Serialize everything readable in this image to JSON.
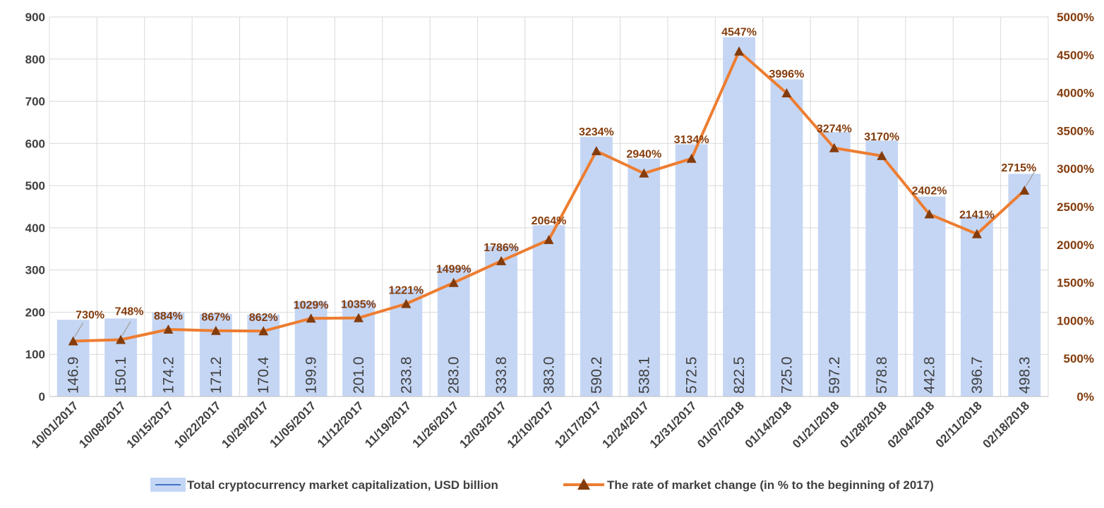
{
  "chart_data": {
    "type": "bar",
    "title": "",
    "xlabel": "",
    "ylabel": "",
    "categories": [
      "10/01/2017",
      "10/08/2017",
      "10/15/2017",
      "10/22/2017",
      "10/29/2017",
      "11/05/2017",
      "11/12/2017",
      "11/19/2017",
      "11/26/2017",
      "12/03/2017",
      "12/10/2017",
      "12/17/2017",
      "12/24/2017",
      "12/31/2017",
      "01/07/2018",
      "01/14/2018",
      "01/21/2018",
      "01/28/2018",
      "02/04/2018",
      "02/11/2018",
      "02/18/2018"
    ],
    "series": [
      {
        "name": "Total cryptocurrency market capitalization, USD billion",
        "type": "bar",
        "axis": "left",
        "color": "#c5d6f4",
        "values": [
          146.9,
          150.1,
          174.2,
          171.2,
          170.4,
          199.9,
          201.0,
          233.8,
          283.0,
          333.8,
          383.0,
          590.2,
          538.1,
          572.5,
          822.5,
          725.0,
          597.2,
          578.8,
          442.8,
          396.7,
          498.3
        ],
        "labels": [
          "146.9",
          "150.1",
          "174.2",
          "171.2",
          "170.4",
          "199.9",
          "201.0",
          "233.8",
          "283.0",
          "333.8",
          "383.0",
          "590.2",
          "538.1",
          "572.5",
          "822.5",
          "725.0",
          "597.2",
          "578.8",
          "442.8",
          "396.7",
          "498.3"
        ],
        "bar_tops": [
          182,
          185,
          199,
          196,
          194,
          226,
          226,
          256,
          306,
          357,
          406,
          616,
          564,
          598,
          852,
          752,
          627,
          607,
          474,
          427,
          528
        ]
      },
      {
        "name": "The rate of market change (in % to the beginning of 2017)",
        "type": "line",
        "axis": "right",
        "color": "#ed7d31",
        "marker": "triangle",
        "marker_color": "#843c0c",
        "values": [
          730,
          748,
          884,
          867,
          862,
          1029,
          1035,
          1221,
          1499,
          1786,
          2064,
          3234,
          2940,
          3134,
          4547,
          3996,
          3274,
          3170,
          2402,
          2141,
          2715
        ],
        "labels": [
          "730%",
          "748%",
          "884%",
          "867%",
          "862%",
          "1029%",
          "1035%",
          "1221%",
          "1499%",
          "1786%",
          "2064%",
          "3234%",
          "2940%",
          "3134%",
          "4547%",
          "3996%",
          "3274%",
          "3170%",
          "2402%",
          "2141%",
          "2715%"
        ]
      }
    ],
    "y_left": {
      "min": 0,
      "max": 900,
      "step": 100,
      "ticks": [
        "0",
        "100",
        "200",
        "300",
        "400",
        "500",
        "600",
        "700",
        "800",
        "900"
      ]
    },
    "y_right": {
      "min": 0,
      "max": 5000,
      "step": 500,
      "ticks": [
        "0%",
        "500%",
        "1000%",
        "1500%",
        "2000%",
        "2500%",
        "3000%",
        "3500%",
        "4000%",
        "4500%",
        "5000%"
      ]
    },
    "grid": true,
    "legend": "bottom",
    "colors": {
      "left_ticks": "#404040",
      "right_ticks": "#843c0c",
      "grid": "#d9d9d9"
    }
  }
}
